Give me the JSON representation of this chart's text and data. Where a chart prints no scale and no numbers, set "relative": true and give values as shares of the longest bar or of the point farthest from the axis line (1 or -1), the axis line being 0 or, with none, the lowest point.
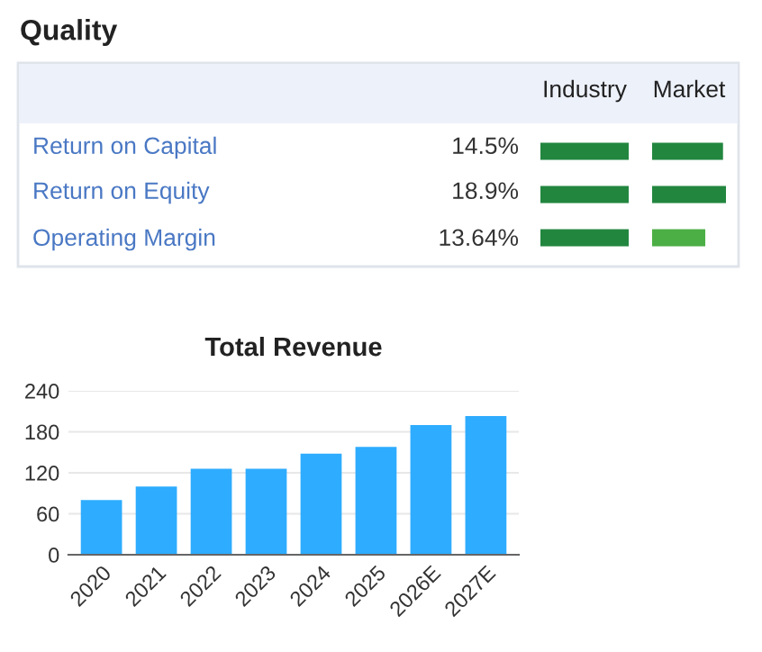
{
  "chart_data": [
    {
      "type": "other",
      "title": "Quality",
      "annotations": [
        "Return on Capital",
        "14.5%",
        "Return on Equity",
        "18.9%",
        "Operating Margin",
        "13.64%"
      ]
    },
    {
      "type": "bar",
      "title": "Industry",
      "orientation": "horizontal",
      "relative": true,
      "categories": [
        null,
        null,
        null
      ],
      "values": [
        1,
        1,
        1
      ],
      "colors": [
        "#22863f",
        "#22863f",
        "#22863f"
      ]
    },
    {
      "type": "bar",
      "title": "Market",
      "orientation": "horizontal",
      "relative": true,
      "categories": [
        null,
        null,
        null
      ],
      "values": [
        0.96,
        1,
        0.72
      ],
      "colors": [
        "#22863f",
        "#22863f",
        "#4caf45"
      ]
    },
    {
      "type": "bar",
      "title": "Total Revenue",
      "categories": [
        "2020",
        "2021",
        "2022",
        "2023",
        "2024",
        "2025",
        "2026E",
        "2027E"
      ],
      "values": [
        80,
        100,
        126,
        126,
        148,
        158,
        190,
        203
      ],
      "color": "#2eacff",
      "ylim": [
        0,
        240
      ],
      "yticks": [
        0,
        60,
        120,
        180,
        240
      ],
      "grid": "y"
    }
  ]
}
